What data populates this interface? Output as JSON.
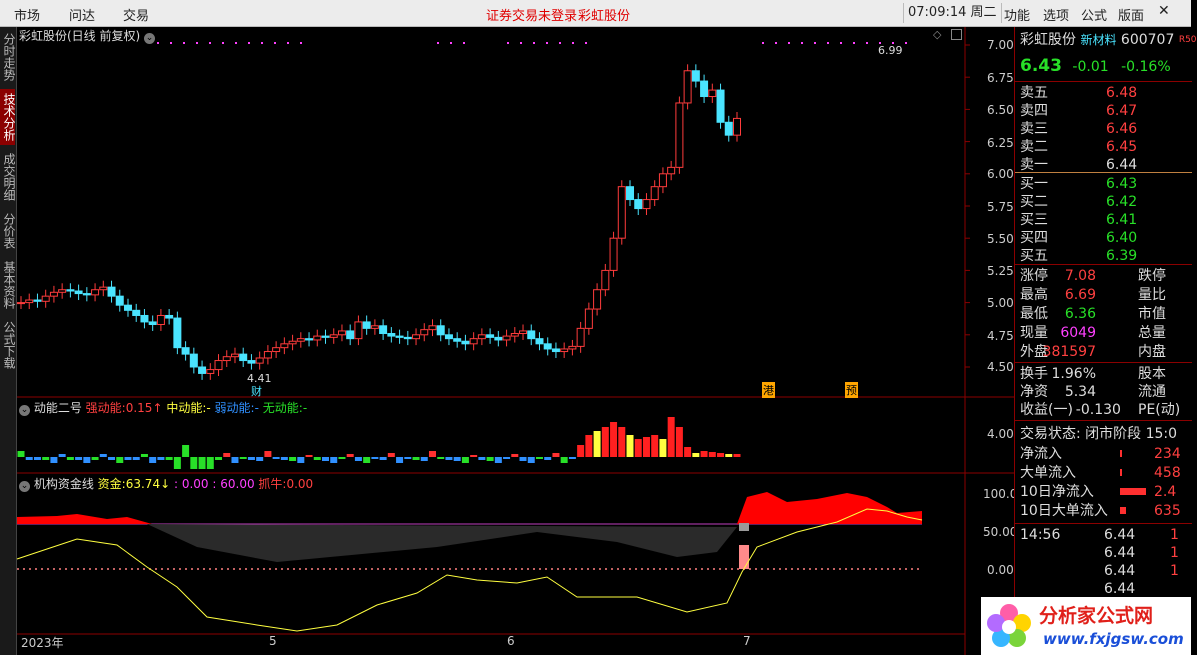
{
  "topbar": {
    "menus": [
      "市场",
      "问达",
      "交易"
    ],
    "notice": "证券交易未登录",
    "stock_link": "彩虹股份",
    "clock": "07:09:14 周二",
    "right_menus": [
      "功能",
      "选项",
      "公式",
      "版面"
    ]
  },
  "left_tabs": [
    "分时走势",
    "技术分析",
    "成交明细",
    "分价表",
    "基本资料",
    "公式下载"
  ],
  "main_chart": {
    "title": "彩虹股份(日线 前复权)",
    "y_ticks": [
      "7.00",
      "6.75",
      "6.50",
      "6.25",
      "6.00",
      "5.75",
      "5.50",
      "5.25",
      "5.00",
      "4.75",
      "4.50"
    ],
    "high_label": "6.99",
    "low_label": "4.41",
    "event_labels": [
      "财",
      "港",
      "预"
    ]
  },
  "indicator1": {
    "name": "动能二号",
    "strong_label": "强动能:",
    "strong_value": "0.15↑",
    "mid_label": "中动能:",
    "mid_value": "-",
    "weak_label": "弱动能:",
    "weak_value": "-",
    "none_label": "无动能:",
    "none_value": "-",
    "y_tick": "4.00"
  },
  "indicator2": {
    "name": "机构资金线",
    "fund_label": "资金:",
    "fund_value": "63.74↓",
    "v1": ": 0.00",
    "v2": ": 60.00",
    "bull_label": "抓牛:",
    "bull_value": "0.00",
    "y_ticks": [
      "100.0",
      "50.00",
      "0.00"
    ]
  },
  "x_axis": {
    "labels": [
      "2023年",
      "5",
      "6",
      "7"
    ]
  },
  "quote": {
    "name": "彩虹股份",
    "industry": "新材料",
    "code": "600707",
    "tag": "R50",
    "price": "6.43",
    "change": "-0.01",
    "change_pct": "-0.16%",
    "asks": [
      {
        "label": "卖五",
        "price": "6.48"
      },
      {
        "label": "卖四",
        "price": "6.47"
      },
      {
        "label": "卖三",
        "price": "6.46"
      },
      {
        "label": "卖二",
        "price": "6.45"
      },
      {
        "label": "卖一",
        "price": "6.44"
      }
    ],
    "bids": [
      {
        "label": "买一",
        "price": "6.43"
      },
      {
        "label": "买二",
        "price": "6.42"
      },
      {
        "label": "买三",
        "price": "6.41"
      },
      {
        "label": "买四",
        "price": "6.40"
      },
      {
        "label": "买五",
        "price": "6.39"
      }
    ],
    "stats": [
      {
        "l": "涨停",
        "v": "7.08",
        "r": "跌停"
      },
      {
        "l": "最高",
        "v": "6.69",
        "r": "量比"
      },
      {
        "l": "最低",
        "v": "6.36",
        "r": "市值"
      },
      {
        "l": "现量",
        "v": "6049",
        "r": "总量"
      },
      {
        "l": "外盘",
        "v": "381597",
        "r": "内盘"
      }
    ],
    "stats2": [
      {
        "l": "换手",
        "v": "1.96%",
        "r": "股本"
      },
      {
        "l": "净资",
        "v": "5.34",
        "r": "流通"
      },
      {
        "l": "收益(一)",
        "v": "-0.130",
        "r": "PE(动)"
      }
    ],
    "trade_state": "交易状态: 闭市阶段 15:0",
    "flows": [
      {
        "l": "净流入",
        "v": "234"
      },
      {
        "l": "大单流入",
        "v": "458"
      },
      {
        "l": "10日净流入",
        "v": "2.4"
      },
      {
        "l": "10日大单流入",
        "v": "635"
      }
    ],
    "ticks": [
      {
        "t": "14:56",
        "p": "6.44",
        "v": "1"
      },
      {
        "t": "",
        "p": "6.44",
        "v": "1"
      },
      {
        "t": "",
        "p": "6.44",
        "v": "1"
      },
      {
        "t": "",
        "p": "6.44",
        "v": ""
      }
    ]
  },
  "watermark": {
    "site": "分析家公式网",
    "url": "www.fxjgsw.com"
  }
}
